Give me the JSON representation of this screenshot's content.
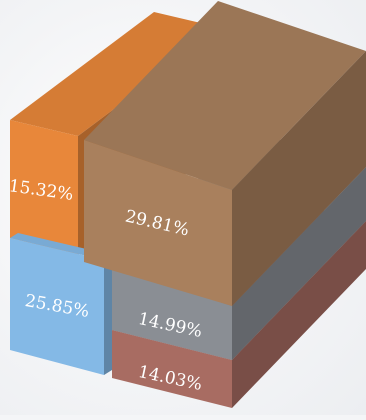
{
  "chart_data": {
    "type": "treemap-3d",
    "title": "",
    "series": [
      {
        "label": "15.32%",
        "value": 15.32,
        "color": "#e8873a"
      },
      {
        "label": "29.81%",
        "value": 29.81,
        "color": "#a9805d"
      },
      {
        "label": "25.85%",
        "value": 25.85,
        "color": "#84b9e6"
      },
      {
        "label": "14.99%",
        "value": 14.99,
        "color": "#8a8e94"
      },
      {
        "label": "14.03%",
        "value": 14.03,
        "color": "#a86c62"
      }
    ]
  }
}
